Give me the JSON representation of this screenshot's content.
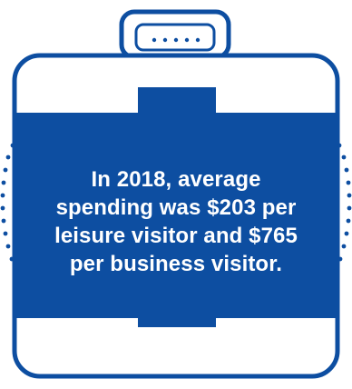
{
  "infographic": {
    "icon": "suitcase-icon",
    "colors": {
      "primary": "#0d4ea1",
      "background": "#ffffff",
      "text": "#ffffff"
    },
    "caption": "In 2018, average spending was $203 per leisure visitor and $765 per business visitor."
  }
}
